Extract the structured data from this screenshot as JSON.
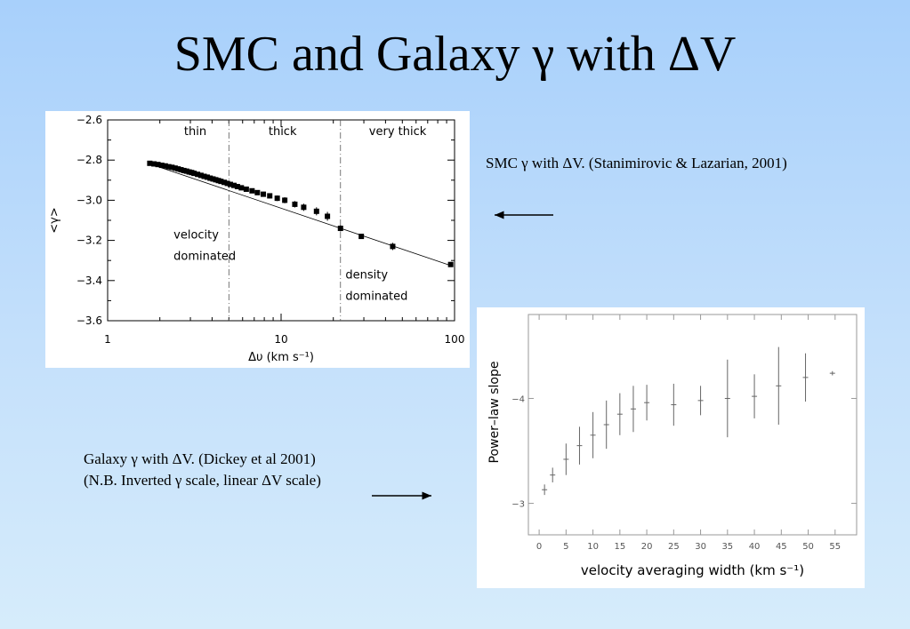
{
  "slide": {
    "title": "SMC and Galaxy γ with ΔV",
    "smc_caption": "SMC γ with ΔV. (Stanimirovic & Lazarian, 2001)",
    "galaxy_caption_line1": "Galaxy γ with ΔV. (Dickey et al 2001)",
    "galaxy_caption_line2": "(N.B. Inverted γ scale, linear ΔV scale)"
  },
  "colors": {
    "background_top": "#a8d0fb",
    "background_bottom": "#d6ecfb",
    "plot_bg": "#ffffff",
    "markers": "#000000",
    "galaxy_markers": "#666666"
  },
  "chart_data": [
    {
      "type": "scatter",
      "xlabel": "Δυ (km s⁻¹)",
      "ylabel": "<γ>",
      "xscale": "log",
      "xlim": [
        1,
        100
      ],
      "ylim": [
        -3.6,
        -2.6
      ],
      "xticks": [
        1,
        10,
        100
      ],
      "xtick_labels": [
        "1",
        "10",
        "100"
      ],
      "yticks": [
        -2.6,
        -2.8,
        -3.0,
        -3.2,
        -3.4,
        -3.6
      ],
      "ytick_labels": [
        "−2.6",
        "−2.8",
        "−3.0",
        "−3.2",
        "−3.4",
        "−3.6"
      ],
      "fit_line": {
        "x": [
          1.7,
          95
        ],
        "y": [
          -2.815,
          -3.325
        ]
      },
      "region_boundaries": [
        5,
        22
      ],
      "region_labels": [
        {
          "text": "thin",
          "x": 3.2,
          "y": -2.675
        },
        {
          "text": "thick",
          "x": 10.2,
          "y": -2.675
        },
        {
          "text": "very thick",
          "x": 47,
          "y": -2.675
        }
      ],
      "annotations": [
        {
          "lines": [
            "velocity",
            "dominated"
          ],
          "x": 2.4,
          "y": -3.19
        },
        {
          "lines": [
            "density",
            "dominated"
          ],
          "x": 23.5,
          "y": -3.39
        }
      ],
      "series": [
        {
          "x": [
            1.75,
            1.85,
            1.95,
            2.05,
            2.15,
            2.25,
            2.35,
            2.45,
            2.55,
            2.65,
            2.75,
            2.85,
            2.95,
            3.05,
            3.15,
            3.3,
            3.45,
            3.6,
            3.75,
            3.9,
            4.05,
            4.2,
            4.35,
            4.5,
            4.7,
            4.9,
            5.1,
            5.35,
            5.6,
            5.9,
            6.3,
            6.8,
            7.3,
            7.9,
            8.6,
            9.5,
            10.5,
            12,
            13.5,
            16,
            18.5,
            22,
            29,
            44,
            95
          ],
          "y": [
            -2.816,
            -2.819,
            -2.822,
            -2.826,
            -2.829,
            -2.833,
            -2.836,
            -2.84,
            -2.844,
            -2.848,
            -2.852,
            -2.855,
            -2.859,
            -2.862,
            -2.866,
            -2.871,
            -2.876,
            -2.881,
            -2.885,
            -2.89,
            -2.894,
            -2.898,
            -2.902,
            -2.906,
            -2.911,
            -2.916,
            -2.921,
            -2.926,
            -2.932,
            -2.938,
            -2.945,
            -2.953,
            -2.962,
            -2.97,
            -2.978,
            -2.99,
            -3.0,
            -3.02,
            -3.035,
            -3.055,
            -3.08,
            -3.14,
            -3.18,
            -3.23,
            -3.32
          ],
          "err": [
            0.003,
            0.003,
            0.003,
            0.003,
            0.003,
            0.003,
            0.003,
            0.003,
            0.003,
            0.003,
            0.004,
            0.004,
            0.004,
            0.004,
            0.004,
            0.005,
            0.005,
            0.005,
            0.005,
            0.005,
            0.006,
            0.006,
            0.006,
            0.006,
            0.007,
            0.007,
            0.007,
            0.008,
            0.008,
            0.009,
            0.01,
            0.01,
            0.011,
            0.012,
            0.013,
            0.014,
            0.015,
            0.016,
            0.018,
            0.02,
            0.022,
            0.015,
            0.01,
            0.018,
            0.005
          ]
        }
      ]
    },
    {
      "type": "scatter",
      "xlabel": "velocity averaging width (km s⁻¹)",
      "ylabel": "Power–law slope",
      "xlim": [
        -2,
        59
      ],
      "ylim": [
        -2.7,
        -4.8
      ],
      "xticks": [
        0,
        5,
        10,
        15,
        20,
        25,
        30,
        35,
        40,
        45,
        50,
        55
      ],
      "xtick_labels": [
        "0",
        "5",
        "10",
        "15",
        "20",
        "25",
        "30",
        "35",
        "40",
        "45",
        "50",
        "55"
      ],
      "yticks": [
        -3,
        -4
      ],
      "ytick_labels": [
        "−3",
        "−4"
      ],
      "series": [
        {
          "x": [
            1,
            2.5,
            5,
            7.5,
            10,
            12.5,
            15,
            17.5,
            20,
            25,
            30,
            35,
            40,
            44.5,
            49.5,
            54.5
          ],
          "y": [
            -3.13,
            -3.27,
            -3.42,
            -3.55,
            -3.65,
            -3.75,
            -3.85,
            -3.9,
            -3.96,
            -3.94,
            -3.98,
            -4.0,
            -4.02,
            -4.12,
            -4.2,
            -4.24
          ],
          "err": [
            0.05,
            0.07,
            0.15,
            0.18,
            0.22,
            0.23,
            0.2,
            0.22,
            0.17,
            0.2,
            0.14,
            0.37,
            0.21,
            0.37,
            0.23,
            0.02
          ]
        }
      ]
    }
  ]
}
